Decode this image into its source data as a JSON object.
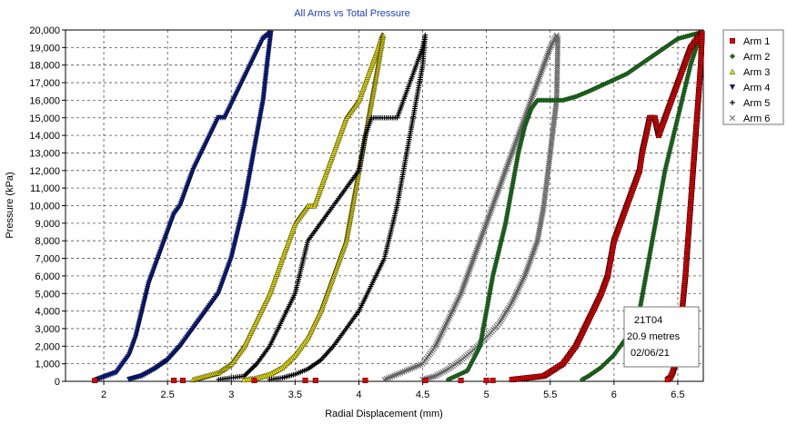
{
  "chart_data": {
    "type": "scatter",
    "title": "All Arms vs Total Pressure",
    "xlabel": "Radial Displacement (mm)",
    "ylabel": "Pressure (kPa)",
    "xlim": [
      1.7,
      6.7
    ],
    "ylim": [
      0,
      20000
    ],
    "x_ticks": [
      "2",
      "2.5",
      "3",
      "3.5",
      "4",
      "4.5",
      "5",
      "5.5",
      "6",
      "6.5"
    ],
    "x_tick_values": [
      2,
      2.5,
      3,
      3.5,
      4,
      4.5,
      5,
      5.5,
      6,
      6.5
    ],
    "y_ticks": [
      "0",
      "1,000",
      "2,000",
      "3,000",
      "4,000",
      "5,000",
      "6,000",
      "7,000",
      "8,000",
      "9,000",
      "10,000",
      "11,000",
      "12,000",
      "13,000",
      "14,000",
      "15,000",
      "16,000",
      "17,000",
      "18,000",
      "19,000",
      "20,000"
    ],
    "y_tick_values": [
      0,
      1000,
      2000,
      3000,
      4000,
      5000,
      6000,
      7000,
      8000,
      9000,
      10000,
      11000,
      12000,
      13000,
      14000,
      15000,
      16000,
      17000,
      18000,
      19000,
      20000
    ],
    "grid": true,
    "legend_position": "right",
    "annotation": [
      "21T04",
      "20.9 metres",
      "02/06/21"
    ],
    "series": [
      {
        "name": "Arm 1",
        "color": "#e00000",
        "marker": "square",
        "x": [
          5.2,
          5.45,
          5.6,
          5.7,
          5.8,
          5.9,
          5.95,
          6.0,
          6.05,
          6.1,
          6.15,
          6.2,
          6.22,
          6.25,
          6.28,
          6.32,
          6.35,
          6.4,
          6.45,
          6.5,
          6.55,
          6.6,
          6.65,
          6.68,
          6.69,
          6.68,
          6.66,
          6.64,
          6.62,
          6.6,
          6.58,
          6.56,
          6.54,
          6.52,
          6.5,
          6.48,
          6.46,
          6.44,
          6.42
        ],
        "y": [
          100,
          300,
          1000,
          2000,
          3500,
          5000,
          6000,
          8000,
          9000,
          10000,
          11000,
          12000,
          13000,
          14000,
          15000,
          15000,
          14000,
          15000,
          16000,
          17000,
          18000,
          19000,
          19500,
          19800,
          19800,
          18000,
          16000,
          14000,
          12000,
          10000,
          8000,
          6000,
          4500,
          3000,
          2000,
          1000,
          500,
          200,
          100
        ]
      },
      {
        "name": "Arm 2",
        "color": "#1a6b1a",
        "marker": "diamond",
        "x": [
          4.7,
          4.85,
          4.95,
          5.0,
          5.05,
          5.1,
          5.15,
          5.2,
          5.25,
          5.3,
          5.35,
          5.4,
          5.45,
          5.5,
          5.6,
          5.7,
          5.8,
          5.95,
          6.1,
          6.3,
          6.5,
          6.65,
          6.68,
          6.6,
          6.5,
          6.4,
          6.35,
          6.3,
          6.25,
          6.2,
          6.1,
          6.0,
          5.9,
          5.8,
          5.75
        ],
        "y": [
          100,
          600,
          2000,
          4000,
          6000,
          7500,
          9000,
          11000,
          13000,
          14500,
          15500,
          16000,
          16000,
          16000,
          16000,
          16200,
          16500,
          17000,
          17500,
          18500,
          19500,
          19800,
          19800,
          18000,
          15000,
          12000,
          10000,
          8000,
          6000,
          4000,
          2500,
          1500,
          800,
          300,
          100
        ]
      },
      {
        "name": "Arm 3",
        "color": "#e8e000",
        "marker": "triangle",
        "x": [
          2.7,
          2.9,
          3.0,
          3.1,
          3.2,
          3.3,
          3.4,
          3.5,
          3.6,
          3.65,
          3.7,
          3.8,
          3.9,
          4.0,
          4.1,
          4.15,
          4.18,
          4.19,
          4.15,
          4.1,
          4.05,
          4.0,
          3.95,
          3.9,
          3.8,
          3.7,
          3.6,
          3.5,
          3.4,
          3.3,
          3.2,
          3.1
        ],
        "y": [
          100,
          500,
          1000,
          2000,
          3500,
          5000,
          7000,
          9000,
          10000,
          10000,
          11000,
          13000,
          15000,
          16000,
          18000,
          19000,
          19700,
          19700,
          18000,
          16000,
          14000,
          12000,
          10000,
          8000,
          6000,
          4000,
          2500,
          1500,
          800,
          400,
          200,
          100
        ]
      },
      {
        "name": "Arm 4",
        "color": "#0a1a80",
        "marker": "triangle-down",
        "x": [
          1.95,
          2.1,
          2.2,
          2.25,
          2.3,
          2.35,
          2.4,
          2.5,
          2.55,
          2.6,
          2.7,
          2.8,
          2.9,
          2.95,
          3.05,
          3.15,
          3.25,
          3.3,
          3.31,
          3.28,
          3.25,
          3.2,
          3.15,
          3.1,
          3.05,
          3.0,
          2.95,
          2.9,
          2.8,
          2.7,
          2.6,
          2.5,
          2.4,
          2.3,
          2.2
        ],
        "y": [
          100,
          500,
          1500,
          2500,
          4000,
          5500,
          6500,
          8500,
          9500,
          10000,
          12000,
          13500,
          15000,
          15000,
          16500,
          18000,
          19500,
          19800,
          19800,
          18000,
          16000,
          14000,
          12000,
          10000,
          8500,
          7000,
          6000,
          5000,
          4000,
          3000,
          2000,
          1200,
          700,
          300,
          100
        ]
      },
      {
        "name": "Arm 5",
        "color": "#000000",
        "marker": "plus",
        "x": [
          2.9,
          3.1,
          3.2,
          3.3,
          3.4,
          3.5,
          3.55,
          3.6,
          3.7,
          3.8,
          3.9,
          4.0,
          4.05,
          4.1,
          4.2,
          4.3,
          4.4,
          4.5,
          4.52,
          4.5,
          4.45,
          4.4,
          4.35,
          4.3,
          4.25,
          4.2,
          4.1,
          4.0,
          3.9,
          3.8,
          3.7,
          3.6,
          3.5,
          3.4,
          3.3
        ],
        "y": [
          100,
          300,
          1000,
          2000,
          3500,
          5000,
          6500,
          8000,
          9000,
          10000,
          11000,
          12000,
          14000,
          15000,
          15000,
          15000,
          17000,
          19000,
          19700,
          18000,
          16000,
          14000,
          12000,
          10000,
          8500,
          7000,
          5500,
          4000,
          3000,
          2000,
          1200,
          700,
          400,
          200,
          100
        ]
      },
      {
        "name": "Arm 6",
        "color": "#606060",
        "marker": "x",
        "x": [
          4.2,
          4.5,
          4.6,
          4.7,
          4.8,
          4.85,
          4.9,
          4.95,
          5.0,
          5.1,
          5.2,
          5.3,
          5.4,
          5.5,
          5.55,
          5.56,
          5.55,
          5.5,
          5.45,
          5.4,
          5.3,
          5.2,
          5.1,
          5.0,
          4.9,
          4.8,
          4.7,
          4.6,
          4.5
        ],
        "y": [
          100,
          1000,
          2000,
          3500,
          5000,
          6000,
          7000,
          8000,
          9000,
          11000,
          13000,
          15000,
          17000,
          19000,
          19700,
          19500,
          16000,
          13000,
          10000,
          8000,
          6000,
          4500,
          3300,
          2500,
          1800,
          1200,
          700,
          300,
          100
        ]
      }
    ],
    "stray_points": [
      {
        "series": "Arm 1",
        "x": [
          1.93,
          2.55,
          2.62,
          3.18,
          3.58,
          3.66,
          4.05,
          4.52,
          4.8,
          5.0,
          5.05
        ],
        "y": [
          50,
          50,
          50,
          50,
          50,
          50,
          50,
          50,
          50,
          50,
          50
        ]
      }
    ]
  }
}
